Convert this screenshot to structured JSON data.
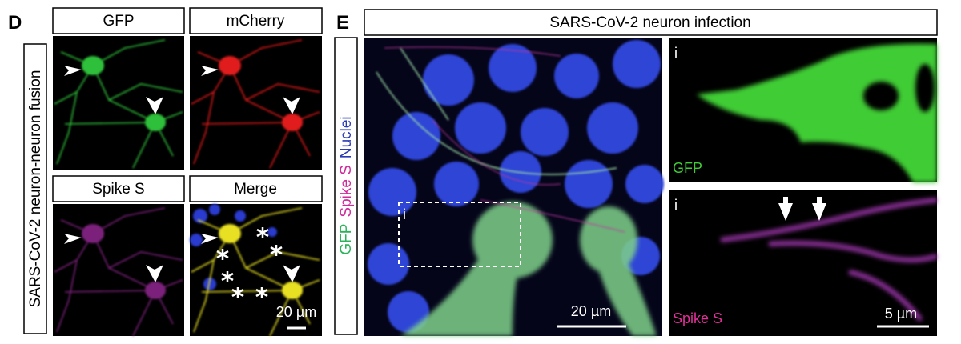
{
  "panel_d": {
    "label": "D",
    "side_label": "SARS-CoV-2 neuron-neuron fusion",
    "images": [
      {
        "title": "GFP"
      },
      {
        "title": "mCherry"
      },
      {
        "title": "Spike S"
      },
      {
        "title": "Merge",
        "scale_bar": "20 µm"
      }
    ]
  },
  "panel_e": {
    "label": "E",
    "title": "SARS-CoV-2 neuron infection",
    "side_label": [
      "GFP",
      "Spike S",
      "Nuclei"
    ],
    "main": {
      "inset_label": "i",
      "scale_bar": "20 µm"
    },
    "insets": [
      {
        "label": "i",
        "channel": "GFP"
      },
      {
        "label": "i",
        "channel": "Spike S",
        "scale_bar": "5 µm"
      }
    ]
  }
}
